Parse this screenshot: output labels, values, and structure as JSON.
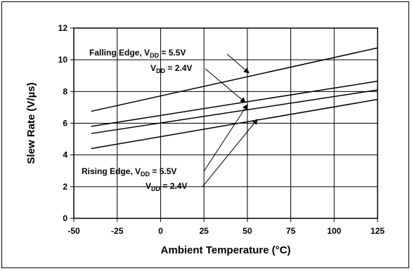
{
  "chart_data": {
    "type": "line",
    "title": "",
    "xlabel": "Ambient Temperature (°C)",
    "ylabel": "Slew Rate (V/µs)",
    "xlim": [
      -50,
      125
    ],
    "ylim": [
      0,
      12
    ],
    "xticks": [
      -50,
      -25,
      0,
      25,
      50,
      75,
      100,
      125
    ],
    "yticks": [
      0,
      2,
      4,
      6,
      8,
      10,
      12
    ],
    "grid": true,
    "series": [
      {
        "x": [
          -40,
          125
        ],
        "y": [
          6.75,
          10.75
        ],
        "color": "#000000"
      },
      {
        "x": [
          -40,
          125
        ],
        "y": [
          5.8,
          8.65
        ],
        "color": "#000000"
      },
      {
        "x": [
          -40,
          125
        ],
        "y": [
          5.35,
          8.1
        ],
        "color": "#000000"
      },
      {
        "x": [
          -40,
          125
        ],
        "y": [
          4.4,
          7.5
        ],
        "color": "#000000"
      }
    ],
    "annotations": [
      {
        "prefix": "Falling Edge, V",
        "sub": "DD",
        "suffix": " = 5.5V"
      },
      {
        "prefix": "V",
        "sub": "DD",
        "suffix": " = 2.4V"
      },
      {
        "prefix": "Rising Edge, V",
        "sub": "DD",
        "suffix": " = 5.5V"
      },
      {
        "prefix": "V",
        "sub": "DD",
        "suffix": " = 2.4V"
      }
    ]
  }
}
